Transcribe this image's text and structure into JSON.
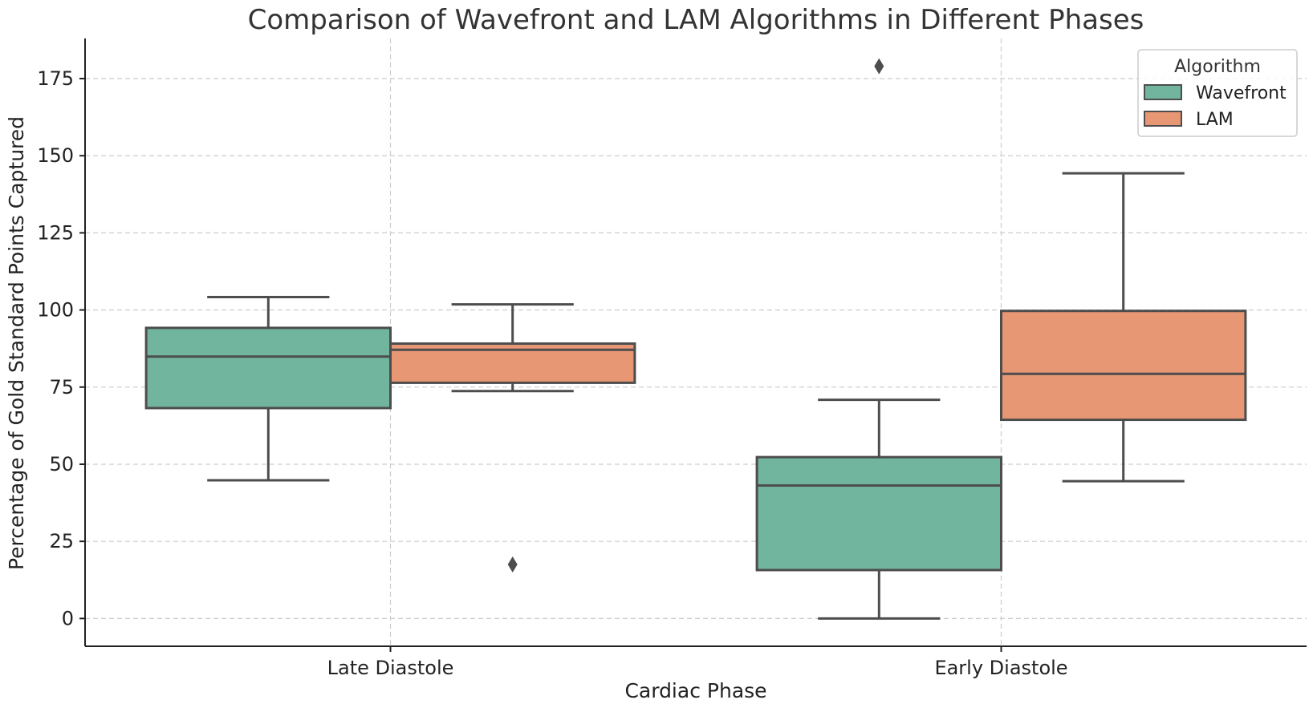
{
  "chart_data": {
    "type": "box",
    "title": "Comparison of Wavefront and LAM Algorithms in Different Phases",
    "xlabel": "Cardiac Phase",
    "ylabel": "Percentage of Gold Standard Points Captured",
    "categories": [
      "Late Diastole",
      "Early Diastole"
    ],
    "ylim": [
      -9,
      188
    ],
    "yticks": [
      0,
      25,
      50,
      75,
      100,
      125,
      150,
      175
    ],
    "grid": true,
    "legend": {
      "title": "Algorithm",
      "placement": "top-right"
    },
    "series": [
      {
        "name": "Wavefront",
        "color": "#72b59f",
        "boxes": [
          {
            "category": "Late Diastole",
            "whisker_low": 44.8,
            "q1": 68.2,
            "median": 84.9,
            "q3": 94.2,
            "whisker_high": 104.2,
            "outliers": []
          },
          {
            "category": "Early Diastole",
            "whisker_low": 0,
            "q1": 15.7,
            "median": 43.1,
            "q3": 52.3,
            "whisker_high": 70.9,
            "outliers": [
              179
            ]
          }
        ]
      },
      {
        "name": "LAM",
        "color": "#e89774",
        "boxes": [
          {
            "category": "Late Diastole",
            "whisker_low": 73.7,
            "q1": 76.4,
            "median": 87.1,
            "q3": 89.1,
            "whisker_high": 101.8,
            "outliers": [
              17.5
            ]
          },
          {
            "category": "Early Diastole",
            "whisker_low": 44.5,
            "q1": 64.4,
            "median": 79.3,
            "q3": 99.7,
            "whisker_high": 144.3,
            "outliers": []
          }
        ]
      }
    ]
  }
}
